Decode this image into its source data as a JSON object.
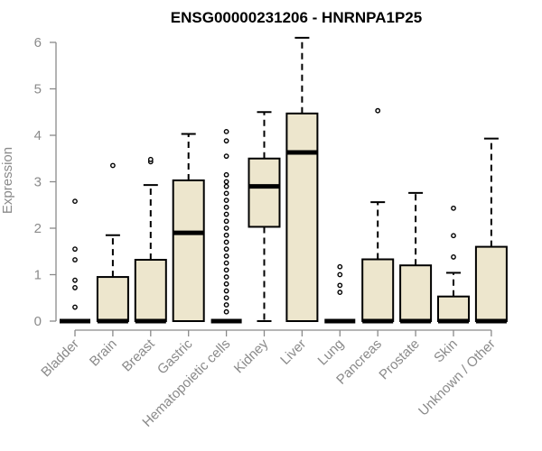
{
  "chart_data": {
    "type": "box",
    "title": "ENSG00000231206 - HNRNPA1P25",
    "xlabel": "",
    "ylabel": "Expression",
    "ylim": [
      0,
      6.15
    ],
    "yticks": [
      0,
      1,
      2,
      3,
      4,
      5,
      6
    ],
    "grid": false,
    "box_fill": "#ede6cd",
    "axis_color": "#8a8a8a",
    "categories": [
      "Bladder",
      "Brain",
      "Breast",
      "Gastric",
      "Hematopoietic cells",
      "Kidney",
      "Liver",
      "Lung",
      "Pancreas",
      "Prostate",
      "Skin",
      "Unknown / Other"
    ],
    "boxes": [
      {
        "category": "Bladder",
        "min": 0,
        "q1": 0,
        "median": 0,
        "q3": 0,
        "max": 0,
        "outliers": [
          0.3,
          0.72,
          0.88,
          1.32,
          1.55,
          2.58
        ]
      },
      {
        "category": "Brain",
        "min": 0,
        "q1": 0,
        "median": 0,
        "q3": 0.95,
        "max": 1.85,
        "outliers": [
          3.35
        ]
      },
      {
        "category": "Breast",
        "min": 0,
        "q1": 0,
        "median": 0,
        "q3": 1.32,
        "max": 2.93,
        "outliers": [
          3.43,
          3.48
        ]
      },
      {
        "category": "Gastric",
        "min": 0,
        "q1": 0,
        "median": 1.9,
        "q3": 3.03,
        "max": 4.03,
        "outliers": []
      },
      {
        "category": "Hematopoietic cells",
        "min": 0,
        "q1": 0,
        "median": 0,
        "q3": 0,
        "max": 0,
        "outliers": [
          0.2,
          0.35,
          0.5,
          0.65,
          0.8,
          0.95,
          1.1,
          1.25,
          1.4,
          1.55,
          1.7,
          1.85,
          2.0,
          2.15,
          2.3,
          2.45,
          2.6,
          2.75,
          2.9,
          3.0,
          3.15,
          3.55,
          3.88,
          4.08
        ]
      },
      {
        "category": "Kidney",
        "min": 0,
        "q1": 2.03,
        "median": 2.9,
        "q3": 3.5,
        "max": 4.5,
        "outliers": []
      },
      {
        "category": "Liver",
        "min": 0,
        "q1": 0,
        "median": 3.63,
        "q3": 4.47,
        "max": 6.1,
        "outliers": []
      },
      {
        "category": "Lung",
        "min": 0,
        "q1": 0,
        "median": 0,
        "q3": 0,
        "max": 0,
        "outliers": [
          0.62,
          0.77,
          1.0,
          1.17
        ]
      },
      {
        "category": "Pancreas",
        "min": 0,
        "q1": 0,
        "median": 0,
        "q3": 1.33,
        "max": 2.56,
        "outliers": [
          4.53
        ]
      },
      {
        "category": "Prostate",
        "min": 0,
        "q1": 0,
        "median": 0,
        "q3": 1.2,
        "max": 2.76,
        "outliers": []
      },
      {
        "category": "Skin",
        "min": 0,
        "q1": 0,
        "median": 0,
        "q3": 0.53,
        "max": 1.04,
        "outliers": [
          1.38,
          1.84,
          2.43
        ]
      },
      {
        "category": "Unknown / Other",
        "min": 0,
        "q1": 0,
        "median": 0,
        "q3": 1.6,
        "max": 3.93,
        "outliers": []
      }
    ]
  }
}
